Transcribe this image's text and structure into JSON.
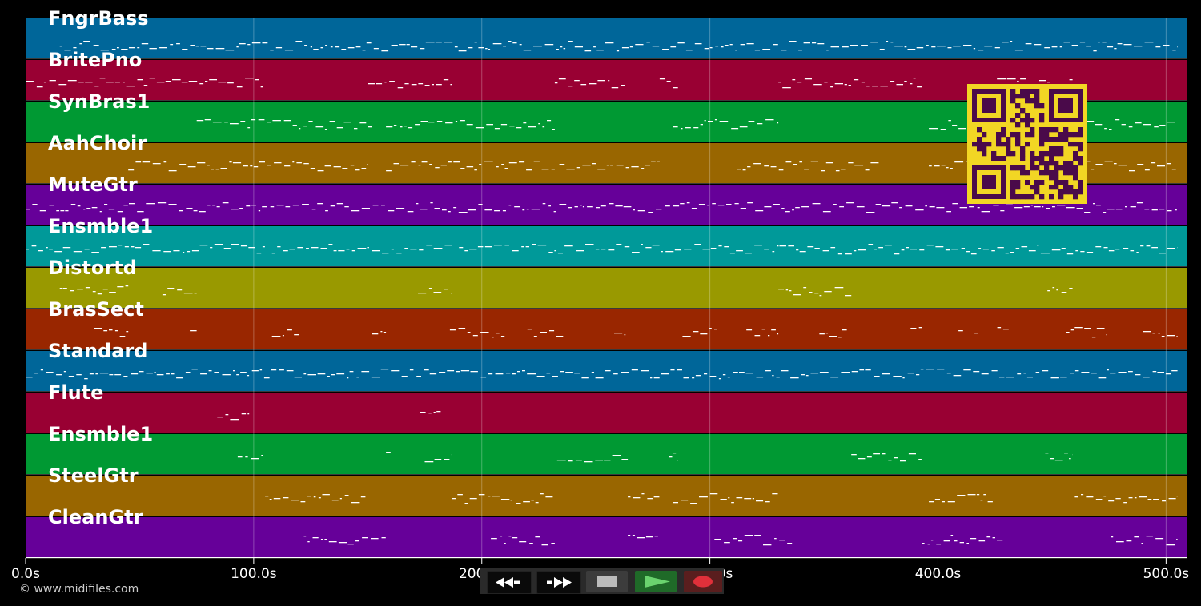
{
  "tracks": [
    {
      "name": "FngrBass",
      "color": "#006699"
    },
    {
      "name": "BritePno",
      "color": "#990033"
    },
    {
      "name": "SynBras1",
      "color": "#009933"
    },
    {
      "name": "AahChoir",
      "color": "#996600"
    },
    {
      "name": "MuteGtr",
      "color": "#660099"
    },
    {
      "name": "Ensmble1",
      "color": "#009999"
    },
    {
      "name": "Distortd",
      "color": "#999900"
    },
    {
      "name": "BrasSect",
      "color": "#992600"
    },
    {
      "name": "Standard",
      "color": "#006699"
    },
    {
      "name": "Flute",
      "color": "#990033"
    },
    {
      "name": "Ensmble1",
      "color": "#009933"
    },
    {
      "name": "SteelGtr",
      "color": "#996600"
    },
    {
      "name": "CleanGtr",
      "color": "#660099"
    }
  ],
  "timeline": {
    "ticks": [
      "0.0s",
      "100.0s",
      "200.0s",
      "300.0s",
      "400.0s",
      "500.0s"
    ],
    "tick_seconds": [
      0,
      100,
      200,
      300,
      400,
      500
    ],
    "max_seconds": 509
  },
  "note_segments": [
    [
      [
        15,
        505
      ]
    ],
    [
      [
        0,
        105
      ],
      [
        150,
        187
      ],
      [
        232,
        264
      ],
      [
        278,
        286
      ],
      [
        330,
        393
      ],
      [
        422,
        459
      ]
    ],
    [
      [
        75,
        152
      ],
      [
        158,
        232
      ],
      [
        284,
        330
      ],
      [
        396,
        505
      ]
    ],
    [
      [
        45,
        150
      ],
      [
        158,
        232
      ],
      [
        234,
        278
      ],
      [
        312,
        374
      ],
      [
        396,
        505
      ]
    ],
    [
      [
        0,
        505
      ]
    ],
    [
      [
        0,
        105
      ],
      [
        108,
        187
      ],
      [
        190,
        505
      ]
    ],
    [
      [
        15,
        45
      ],
      [
        60,
        75
      ],
      [
        172,
        187
      ],
      [
        330,
        362
      ],
      [
        448,
        459
      ]
    ],
    [
      [
        30,
        45
      ],
      [
        72,
        75
      ],
      [
        108,
        120
      ],
      [
        152,
        158
      ],
      [
        186,
        210
      ],
      [
        220,
        236
      ],
      [
        258,
        263
      ],
      [
        288,
        303
      ],
      [
        316,
        330
      ],
      [
        348,
        360
      ],
      [
        388,
        393
      ],
      [
        409,
        411
      ],
      [
        416,
        418
      ],
      [
        426,
        431
      ],
      [
        456,
        474
      ],
      [
        490,
        505
      ]
    ],
    [
      [
        0,
        505
      ]
    ],
    [
      [
        84,
        98
      ],
      [
        173,
        182
      ]
    ],
    [
      [
        93,
        104
      ],
      [
        158,
        160
      ],
      [
        175,
        187
      ],
      [
        233,
        264
      ],
      [
        282,
        286
      ],
      [
        362,
        393
      ],
      [
        447,
        459
      ]
    ],
    [
      [
        105,
        150
      ],
      [
        187,
        232
      ],
      [
        264,
        278
      ],
      [
        284,
        330
      ],
      [
        396,
        424
      ],
      [
        460,
        505
      ]
    ],
    [
      [
        122,
        158
      ],
      [
        204,
        232
      ],
      [
        264,
        278
      ],
      [
        302,
        336
      ],
      [
        393,
        429
      ],
      [
        476,
        505
      ]
    ]
  ],
  "footer": {
    "copyright": "© www.midifiles.com"
  },
  "transport": {
    "rewind": "rewind-icon",
    "fast_forward": "fast-forward-icon",
    "stop": "stop-icon",
    "play": "play-icon",
    "record": "record-icon"
  },
  "qr": {
    "color_fg": "#4a0a4a",
    "color_bg": "#f2d624"
  }
}
